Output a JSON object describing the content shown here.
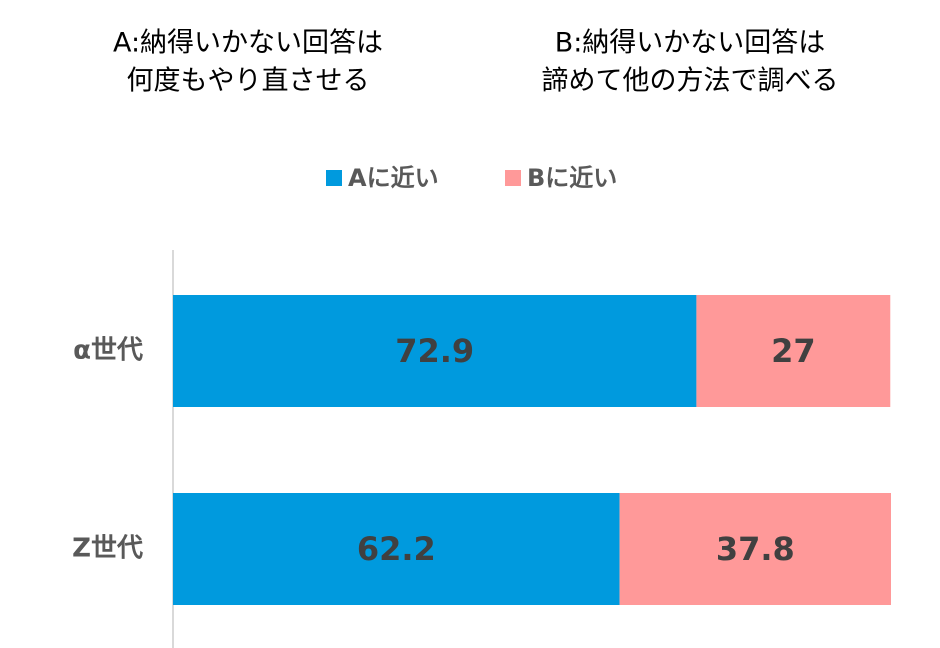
{
  "chart_data": {
    "type": "stacked-bar",
    "orientation": "horizontal",
    "annotations": [
      [
        "A:納得いかない回答は",
        "何度もやり直させる"
      ],
      [
        "B:納得いかない回答は",
        "諦めて他の方法で調べる"
      ]
    ],
    "categories": [
      "α世代",
      "Z世代"
    ],
    "series": [
      {
        "name": "Aに近い",
        "color": "#009ade",
        "values": [
          72.9,
          62.2
        ]
      },
      {
        "name": "Bに近い",
        "color": "#ff9999",
        "values": [
          27,
          37.8
        ]
      }
    ],
    "xlim": [
      0,
      100
    ],
    "legend": "top"
  }
}
